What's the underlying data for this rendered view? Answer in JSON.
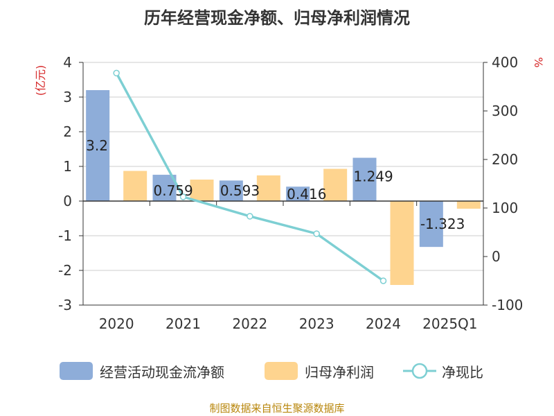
{
  "chart_data": {
    "type": "bar",
    "title": "历年经营现金净额、归母净利润情况",
    "categories": [
      "2020",
      "2021",
      "2022",
      "2023",
      "2024",
      "2025Q1"
    ],
    "y_left": {
      "label": "(亿元)",
      "ticks": [
        "4",
        "3",
        "2",
        "1",
        "0",
        "-1",
        "-2",
        "-3"
      ],
      "ylim": [
        -3,
        4
      ]
    },
    "y_right": {
      "label": "%",
      "ticks": [
        "400",
        "300",
        "200",
        "100",
        "0",
        "-100"
      ],
      "ylim": [
        -100,
        400
      ]
    },
    "series": [
      {
        "name": "经营活动现金流净额",
        "kind": "bar",
        "axis": "left",
        "color": "#8eadd9",
        "values": [
          3.2,
          0.759,
          0.593,
          0.416,
          1.249,
          -1.323
        ],
        "labels": [
          "3.2",
          "0.759",
          "0.593",
          "0.416",
          "1.249",
          "-1.323"
        ]
      },
      {
        "name": "归母净利润",
        "kind": "bar",
        "axis": "left",
        "color": "#fed48f",
        "values": [
          0.87,
          0.62,
          0.74,
          0.93,
          -2.42,
          -0.22
        ]
      },
      {
        "name": "净现比",
        "kind": "line",
        "axis": "right",
        "color": "#7dcfd3",
        "values": [
          378,
          123,
          83,
          47,
          -50,
          null
        ]
      }
    ]
  },
  "legend": {
    "items": [
      {
        "name": "经营活动现金流净额",
        "color": "#8eadd9"
      },
      {
        "name": "归母净利润",
        "color": "#fed48f"
      },
      {
        "name": "净现比",
        "color": "#7dcfd3"
      }
    ]
  },
  "source_note": "制图数据来自恒生聚源数据库"
}
